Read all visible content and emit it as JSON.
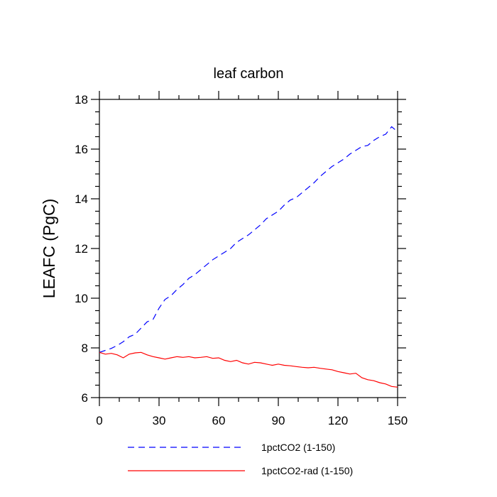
{
  "chart_data": {
    "type": "line",
    "title": "leaf carbon",
    "xlabel": "",
    "ylabel": "LEAFC  (PgC)",
    "xlim": [
      0,
      150
    ],
    "ylim": [
      6,
      18
    ],
    "xticks": [
      0,
      30,
      60,
      90,
      120,
      150
    ],
    "yticks": [
      6,
      8,
      10,
      12,
      14,
      16,
      18
    ],
    "grid": false,
    "legend_position": "bottom",
    "series": [
      {
        "name": "1pctCO2 (1-150)",
        "color": "#0000ff",
        "style": "dashed",
        "x": [
          0,
          3,
          6,
          9,
          12,
          15,
          18,
          21,
          24,
          27,
          30,
          33,
          36,
          39,
          42,
          45,
          48,
          51,
          54,
          57,
          60,
          63,
          66,
          69,
          72,
          75,
          78,
          81,
          84,
          87,
          90,
          93,
          96,
          99,
          102,
          105,
          108,
          111,
          114,
          117,
          120,
          123,
          126,
          129,
          132,
          135,
          138,
          141,
          144,
          147,
          150
        ],
        "y": [
          7.82,
          7.9,
          7.98,
          8.1,
          8.25,
          8.45,
          8.55,
          8.8,
          9.05,
          9.15,
          9.6,
          9.95,
          10.1,
          10.35,
          10.55,
          10.8,
          10.95,
          11.15,
          11.35,
          11.55,
          11.7,
          11.85,
          12.0,
          12.25,
          12.4,
          12.55,
          12.75,
          12.95,
          13.2,
          13.35,
          13.5,
          13.75,
          13.95,
          14.05,
          14.25,
          14.45,
          14.65,
          14.9,
          15.1,
          15.3,
          15.45,
          15.6,
          15.8,
          15.95,
          16.1,
          16.15,
          16.35,
          16.5,
          16.6,
          16.9,
          16.7
        ]
      },
      {
        "name": "1pctCO2-rad (1-150)",
        "color": "#ff0000",
        "style": "solid",
        "x": [
          0,
          3,
          6,
          9,
          12,
          15,
          18,
          21,
          24,
          27,
          30,
          33,
          36,
          39,
          42,
          45,
          48,
          51,
          54,
          57,
          60,
          63,
          66,
          69,
          72,
          75,
          78,
          81,
          84,
          87,
          90,
          93,
          96,
          99,
          102,
          105,
          108,
          111,
          114,
          117,
          120,
          123,
          126,
          129,
          132,
          135,
          138,
          141,
          144,
          147,
          150
        ],
        "y": [
          7.82,
          7.75,
          7.78,
          7.72,
          7.6,
          7.75,
          7.8,
          7.82,
          7.72,
          7.65,
          7.6,
          7.55,
          7.6,
          7.65,
          7.62,
          7.65,
          7.6,
          7.62,
          7.65,
          7.58,
          7.6,
          7.5,
          7.45,
          7.5,
          7.4,
          7.35,
          7.42,
          7.4,
          7.35,
          7.3,
          7.35,
          7.3,
          7.28,
          7.25,
          7.22,
          7.2,
          7.22,
          7.18,
          7.15,
          7.12,
          7.05,
          7.0,
          6.95,
          6.98,
          6.8,
          6.72,
          6.68,
          6.6,
          6.55,
          6.45,
          6.42
        ]
      }
    ]
  }
}
